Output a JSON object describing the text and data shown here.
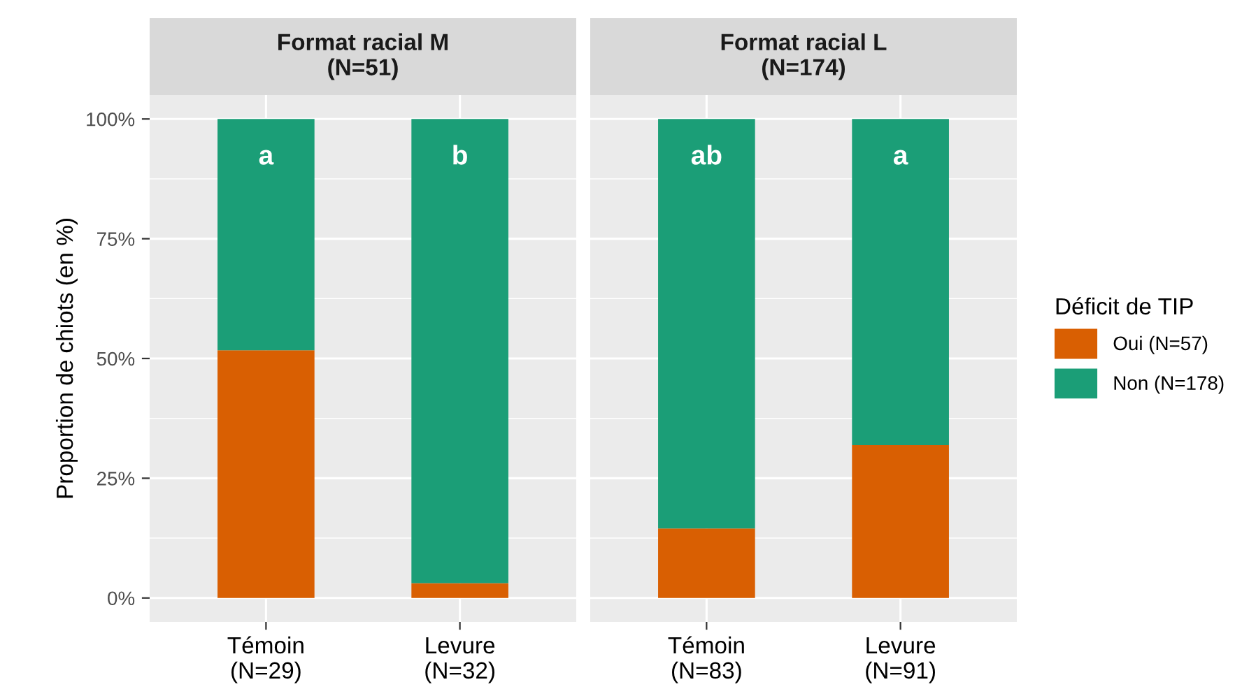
{
  "chart_data": [
    {
      "type": "bar",
      "title": "Format racial M\n(N=51)",
      "ylabel": "Proportion de chiots (en %)",
      "categories": [
        "Témoin\n(N=29)",
        "Levure\n(N=32)"
      ],
      "stacked": true,
      "series": [
        {
          "name": "Oui (N=57)",
          "color": "#d95f02",
          "values": [
            51.7,
            3.1
          ]
        },
        {
          "name": "Non (N=178)",
          "color": "#1b9e77",
          "values": [
            48.3,
            96.9
          ]
        }
      ],
      "ylim": [
        -5,
        105
      ],
      "yticks": [
        {
          "value": 0,
          "label": "0%"
        },
        {
          "value": 25,
          "label": "25%"
        },
        {
          "value": 50,
          "label": "50%"
        },
        {
          "value": 75,
          "label": "75%"
        },
        {
          "value": 100,
          "label": "100%"
        }
      ],
      "grid": true,
      "legend": "right",
      "legend_title": "Déficit de TIP",
      "annotations": [
        "a",
        "b"
      ]
    },
    {
      "type": "bar",
      "title": "Format racial L\n(N=174)",
      "categories": [
        "Témoin\n(N=83)",
        "Levure\n(N=91)"
      ],
      "stacked": true,
      "series": [
        {
          "color": "#d95f02",
          "values": [
            14.5,
            31.9
          ]
        },
        {
          "color": "#1b9e77",
          "values": [
            85.5,
            68.1
          ]
        }
      ],
      "ylim": [
        -5,
        105
      ],
      "yticks": [
        0,
        25,
        50,
        75,
        100
      ],
      "grid": true,
      "tick_labels": "x",
      "annotations": [
        "ab",
        "a"
      ]
    }
  ]
}
